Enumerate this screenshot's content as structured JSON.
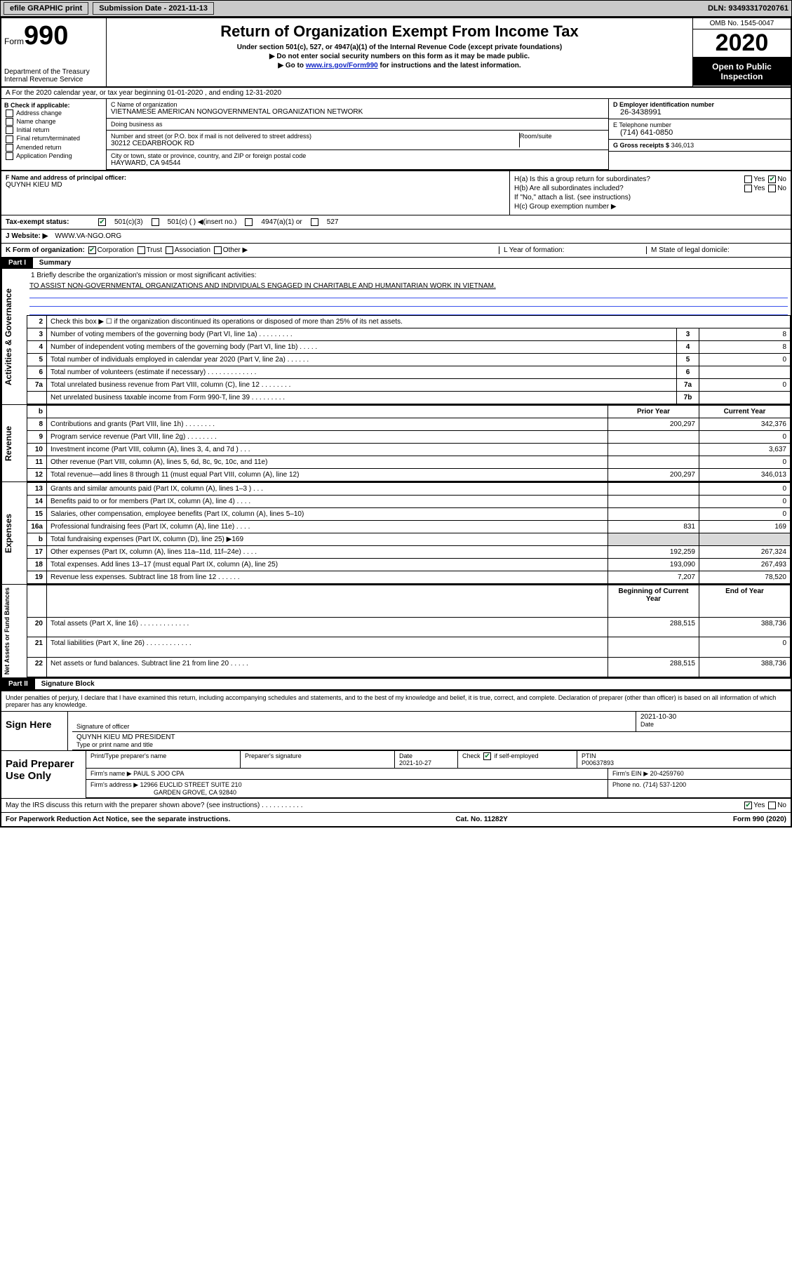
{
  "topbar": {
    "efile": "efile GRAPHIC print",
    "submission_label": "Submission Date - 2021-11-13",
    "dln": "DLN: 93493317020761"
  },
  "header": {
    "form_word": "Form",
    "form_no": "990",
    "dept": "Department of the Treasury\nInternal Revenue Service",
    "title": "Return of Organization Exempt From Income Tax",
    "subtitle": "Under section 501(c), 527, or 4947(a)(1) of the Internal Revenue Code (except private foundations)",
    "note1": "▶ Do not enter social security numbers on this form as it may be made public.",
    "note2_pre": "▶ Go to ",
    "note2_link": "www.irs.gov/Form990",
    "note2_post": " for instructions and the latest information.",
    "omb": "OMB No. 1545-0047",
    "year": "2020",
    "open": "Open to Public Inspection"
  },
  "lineA": "A    For the 2020 calendar year, or tax year beginning 01-01-2020    , and ending 12-31-2020",
  "boxB": {
    "title": "B Check if applicable:",
    "opts": [
      "Address change",
      "Name change",
      "Initial return",
      "Final return/terminated",
      "Amended return",
      "Application Pending"
    ]
  },
  "boxC": {
    "name_label": "C Name of organization",
    "name": "VIETNAMESE AMERICAN NONGOVERNMENTAL ORGANIZATION NETWORK",
    "dba_label": "Doing business as",
    "addr_label": "Number and street (or P.O. box if mail is not delivered to street address)",
    "room_label": "Room/suite",
    "addr": "30212 CEDARBROOK RD",
    "city_label": "City or town, state or province, country, and ZIP or foreign postal code",
    "city": "HAYWARD, CA  94544"
  },
  "boxD": {
    "label": "D Employer identification number",
    "val": "26-3438991"
  },
  "boxE": {
    "label": "E Telephone number",
    "val": "(714) 641-0850"
  },
  "boxG": {
    "label": "G Gross receipts $",
    "val": "346,013"
  },
  "boxF": {
    "label": "F Name and address of principal officer:",
    "val": "QUYNH KIEU MD"
  },
  "boxH": {
    "a": "H(a)  Is this a group return for subordinates?",
    "b": "H(b)  Are all subordinates included?",
    "bnote": "If \"No,\" attach a list. (see instructions)",
    "c": "H(c)  Group exemption number ▶",
    "yes": "Yes",
    "no": "No"
  },
  "taxrow": {
    "label": "Tax-exempt status:",
    "o1": "501(c)(3)",
    "o2": "501(c) (  ) ◀(insert no.)",
    "o3": "4947(a)(1) or",
    "o4": "527"
  },
  "website": {
    "label": "J   Website: ▶",
    "val": "WWW.VA-NGO.ORG"
  },
  "krow": {
    "k": "K Form of organization:",
    "opts": [
      "Corporation",
      "Trust",
      "Association",
      "Other ▶"
    ],
    "l": "L Year of formation:",
    "m": "M State of legal domicile:"
  },
  "part1": {
    "tag": "Part I",
    "title": "Summary"
  },
  "summary_q1": "1   Briefly describe the organization's mission or most significant activities:",
  "summary_a1": "TO ASSIST NON-GOVERNMENTAL ORGANIZATIONS AND INDIVIDUALS ENGAGED IN CHARITABLE AND HUMANITARIAN WORK IN VIETNAM.",
  "gov_lines": [
    {
      "n": "2",
      "t": "Check this box ▶ ☐  if the organization discontinued its operations or disposed of more than 25% of its net assets."
    },
    {
      "n": "3",
      "t": "Number of voting members of the governing body (Part VI, line 1a)  .   .   .   .   .   .   .   .   .",
      "box": "3",
      "v": "8"
    },
    {
      "n": "4",
      "t": "Number of independent voting members of the governing body (Part VI, line 1b)  .   .   .   .   .",
      "box": "4",
      "v": "8"
    },
    {
      "n": "5",
      "t": "Total number of individuals employed in calendar year 2020 (Part V, line 2a)  .   .   .   .   .   .",
      "box": "5",
      "v": "0"
    },
    {
      "n": "6",
      "t": "Total number of volunteers (estimate if necessary)  .   .   .   .   .   .   .   .   .   .   .   .   .",
      "box": "6",
      "v": ""
    },
    {
      "n": "7a",
      "t": "Total unrelated business revenue from Part VIII, column (C), line 12  .   .   .   .   .   .   .   .",
      "box": "7a",
      "v": "0"
    },
    {
      "n": "",
      "t": "Net unrelated business taxable income from Form 990-T, line 39  .   .   .   .   .   .   .   .   .",
      "box": "7b",
      "v": ""
    }
  ],
  "two_col_header": {
    "b": "b",
    "prior": "Prior Year",
    "curr": "Current Year"
  },
  "revenue": [
    {
      "n": "8",
      "t": "Contributions and grants (Part VIII, line 1h)  .   .   .   .   .   .   .   .",
      "p": "200,297",
      "c": "342,376"
    },
    {
      "n": "9",
      "t": "Program service revenue (Part VIII, line 2g)  .   .   .   .   .   .   .   .",
      "p": "",
      "c": "0"
    },
    {
      "n": "10",
      "t": "Investment income (Part VIII, column (A), lines 3, 4, and 7d )  .   .   .",
      "p": "",
      "c": "3,637"
    },
    {
      "n": "11",
      "t": "Other revenue (Part VIII, column (A), lines 5, 6d, 8c, 9c, 10c, and 11e)",
      "p": "",
      "c": "0"
    },
    {
      "n": "12",
      "t": "Total revenue—add lines 8 through 11 (must equal Part VIII, column (A), line 12)",
      "p": "200,297",
      "c": "346,013"
    }
  ],
  "expenses": [
    {
      "n": "13",
      "t": "Grants and similar amounts paid (Part IX, column (A), lines 1–3 )  .   .   .",
      "p": "",
      "c": "0"
    },
    {
      "n": "14",
      "t": "Benefits paid to or for members (Part IX, column (A), line 4)  .   .   .   .",
      "p": "",
      "c": "0"
    },
    {
      "n": "15",
      "t": "Salaries, other compensation, employee benefits (Part IX, column (A), lines 5–10)",
      "p": "",
      "c": "0"
    },
    {
      "n": "16a",
      "t": "Professional fundraising fees (Part IX, column (A), line 11e)  .   .   .   .",
      "p": "831",
      "c": "169"
    },
    {
      "n": "b",
      "t": "Total fundraising expenses (Part IX, column (D), line 25) ▶169",
      "p": "—shade—",
      "c": "—shade—"
    },
    {
      "n": "17",
      "t": "Other expenses (Part IX, column (A), lines 11a–11d, 11f–24e)  .   .   .   .",
      "p": "192,259",
      "c": "267,324"
    },
    {
      "n": "18",
      "t": "Total expenses. Add lines 13–17 (must equal Part IX, column (A), line 25)",
      "p": "193,090",
      "c": "267,493"
    },
    {
      "n": "19",
      "t": "Revenue less expenses. Subtract line 18 from line 12  .   .   .   .   .   .",
      "p": "7,207",
      "c": "78,520"
    }
  ],
  "na_header": {
    "beg": "Beginning of Current Year",
    "end": "End of Year"
  },
  "netassets": [
    {
      "n": "20",
      "t": "Total assets (Part X, line 16)  .   .   .   .   .   .   .   .   .   .   .   .   .",
      "p": "288,515",
      "c": "388,736"
    },
    {
      "n": "21",
      "t": "Total liabilities (Part X, line 26)  .   .   .   .   .   .   .   .   .   .   .   .",
      "p": "",
      "c": "0"
    },
    {
      "n": "22",
      "t": "Net assets or fund balances. Subtract line 21 from line 20  .   .   .   .   .",
      "p": "288,515",
      "c": "388,736"
    }
  ],
  "part2": {
    "tag": "Part II",
    "title": "Signature Block"
  },
  "perjury": "Under penalties of perjury, I declare that I have examined this return, including accompanying schedules and statements, and to the best of my knowledge and belief, it is true, correct, and complete. Declaration of preparer (other than officer) is based on all information of which preparer has any knowledge.",
  "sign": {
    "label": "Sign Here",
    "sig_of_officer": "Signature of officer",
    "date_label": "Date",
    "date": "2021-10-30",
    "typed": "QUYNH KIEU MD  PRESIDENT",
    "typed_label": "Type or print name and title"
  },
  "prep": {
    "label": "Paid Preparer Use Only",
    "h": [
      "Print/Type preparer's name",
      "Preparer's signature",
      "Date",
      "Check ☑ if self-employed",
      "PTIN"
    ],
    "date": "2021-10-27",
    "ptin": "P00637893",
    "firm_label": "Firm's name    ▶",
    "firm": "PAUL S JOO CPA",
    "ein_label": "Firm's EIN ▶",
    "ein": "20-4259760",
    "addr_label": "Firm's address ▶",
    "addr1": "12966 EUCLID STREET SUITE 210",
    "addr2": "GARDEN GROVE, CA  92840",
    "phone_label": "Phone no.",
    "phone": "(714) 537-1200"
  },
  "discuss": "May the IRS discuss this return with the preparer shown above? (see instructions)  .   .   .   .   .   .   .   .   .   .   .",
  "discuss_yes": "Yes",
  "discuss_no": "No",
  "paperwork": "For Paperwork Reduction Act Notice, see the separate instructions.",
  "catno": "Cat. No. 11282Y",
  "formfoot": "Form 990 (2020)",
  "sidelabels": {
    "gov": "Activities & Governance",
    "rev": "Revenue",
    "exp": "Expenses",
    "na": "Net Assets or Fund Balances"
  }
}
